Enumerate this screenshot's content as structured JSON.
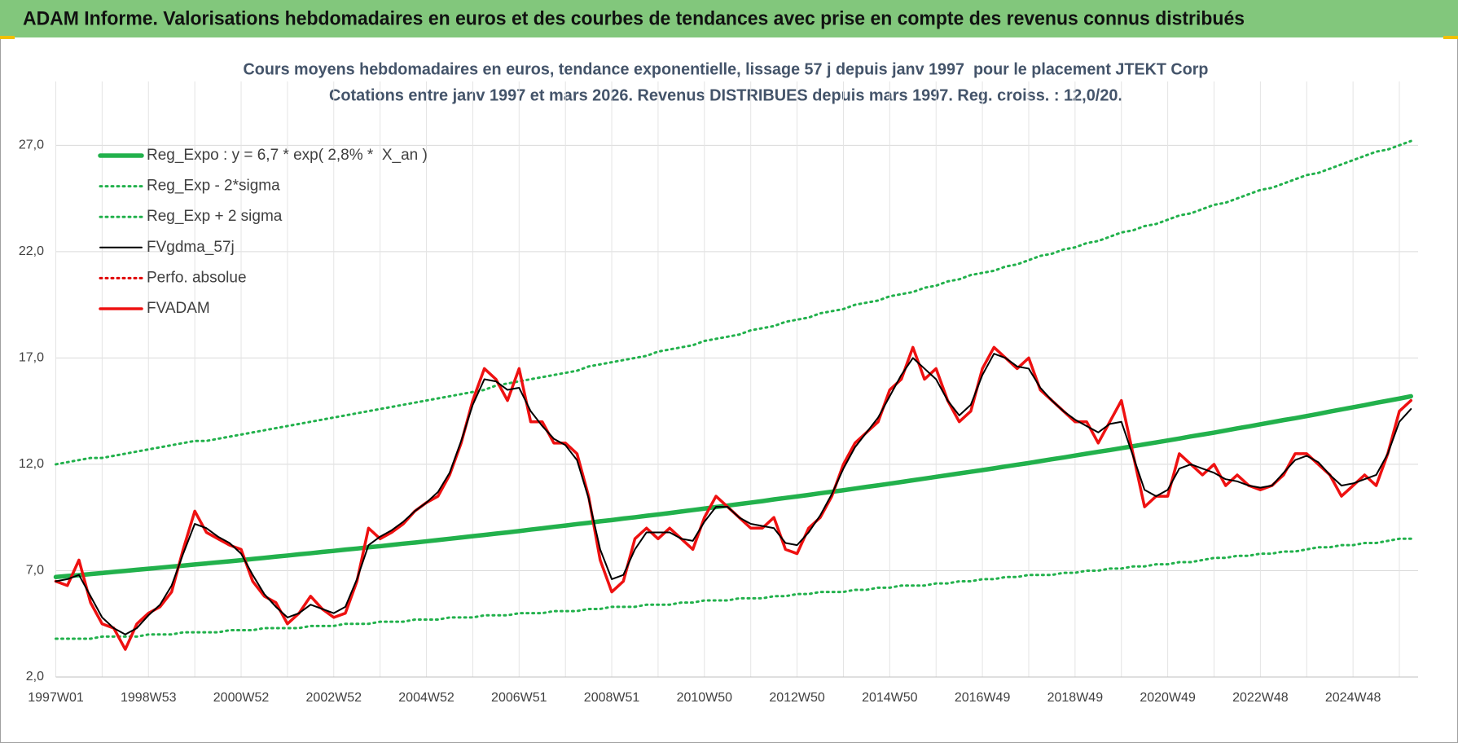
{
  "header": {
    "title": "ADAM Informe. Valorisations hebdomadaires en euros et des courbes de tendances avec prise en compte des revenus connus distribués"
  },
  "chart_data": {
    "type": "line",
    "title": "Cours moyens hebdomadaires en euros, tendance exponentielle, lissage 57 j depuis janv 1997  pour le placement JTEKT Corp",
    "subtitle": "Cotations entre janv 1997 et mars 2026. Revenus DISTRIBUES depuis mars 1997. Reg. croiss. : 12,0/20.",
    "categories": [
      "1997W01",
      null,
      null,
      null,
      null,
      null,
      null,
      null,
      "1998W53",
      null,
      null,
      null,
      null,
      null,
      null,
      null,
      "2000W52",
      null,
      null,
      null,
      null,
      null,
      null,
      null,
      "2002W52",
      null,
      null,
      null,
      null,
      null,
      null,
      null,
      "2004W52",
      null,
      null,
      null,
      null,
      null,
      null,
      null,
      "2006W51",
      null,
      null,
      null,
      null,
      null,
      null,
      null,
      "2008W51",
      null,
      null,
      null,
      null,
      null,
      null,
      null,
      "2010W50",
      null,
      null,
      null,
      null,
      null,
      null,
      null,
      "2012W50",
      null,
      null,
      null,
      null,
      null,
      null,
      null,
      "2014W50",
      null,
      null,
      null,
      null,
      null,
      null,
      null,
      "2016W49",
      null,
      null,
      null,
      null,
      null,
      null,
      null,
      "2018W49",
      null,
      null,
      null,
      null,
      null,
      null,
      null,
      "2020W49",
      null,
      null,
      null,
      null,
      null,
      null,
      null,
      "2022W48",
      null,
      null,
      null,
      null,
      null,
      null,
      null,
      "2024W48",
      null,
      null,
      null,
      null,
      null
    ],
    "ylim": [
      2,
      30
    ],
    "yticks": [
      {
        "value": 2,
        "label": "2,0"
      },
      {
        "value": 7,
        "label": "7,0"
      },
      {
        "value": 12,
        "label": "12,0"
      },
      {
        "value": 17,
        "label": "17,0"
      },
      {
        "value": 22,
        "label": "22,0"
      },
      {
        "value": 27,
        "label": "27,0"
      }
    ],
    "grid": true,
    "legend": "upper left",
    "series": [
      {
        "name": "Reg_Expo : y = 6,7 * exp( 2,8% *  X_an )",
        "color": "#22b14c",
        "style": "solid",
        "values": [
          6.7,
          6.75,
          6.79,
          6.84,
          6.89,
          6.94,
          6.99,
          7.04,
          7.09,
          7.14,
          7.19,
          7.24,
          7.29,
          7.34,
          7.39,
          7.44,
          7.49,
          7.55,
          7.6,
          7.66,
          7.71,
          7.77,
          7.82,
          7.88,
          7.93,
          7.99,
          8.04,
          8.1,
          8.15,
          8.21,
          8.27,
          8.32,
          8.38,
          8.44,
          8.5,
          8.56,
          8.62,
          8.68,
          8.74,
          8.8,
          8.86,
          8.93,
          8.99,
          9.06,
          9.12,
          9.19,
          9.25,
          9.32,
          9.38,
          9.45,
          9.51,
          9.58,
          9.64,
          9.71,
          9.78,
          9.85,
          9.92,
          9.99,
          10.06,
          10.13,
          10.2,
          10.27,
          10.35,
          10.42,
          10.49,
          10.56,
          10.64,
          10.71,
          10.78,
          10.86,
          10.94,
          11.01,
          11.09,
          11.17,
          11.25,
          11.33,
          11.41,
          11.49,
          11.57,
          11.65,
          11.73,
          11.81,
          11.9,
          11.98,
          12.06,
          12.15,
          12.24,
          12.32,
          12.41,
          12.5,
          12.59,
          12.67,
          12.76,
          12.85,
          12.94,
          13.03,
          13.12,
          13.21,
          13.31,
          13.4,
          13.49,
          13.59,
          13.69,
          13.78,
          13.88,
          13.98,
          14.08,
          14.17,
          14.27,
          14.37,
          14.48,
          14.58,
          14.68,
          14.78,
          14.89,
          14.99,
          15.09,
          15.2
        ]
      },
      {
        "name": "Reg_Exp - 2*sigma",
        "color": "#22b14c",
        "style": "dotted",
        "values": [
          3.8,
          3.8,
          3.8,
          3.8,
          3.9,
          3.9,
          3.9,
          3.9,
          4.0,
          4.0,
          4.0,
          4.1,
          4.1,
          4.1,
          4.1,
          4.2,
          4.2,
          4.2,
          4.3,
          4.3,
          4.3,
          4.3,
          4.4,
          4.4,
          4.4,
          4.5,
          4.5,
          4.5,
          4.6,
          4.6,
          4.6,
          4.7,
          4.7,
          4.7,
          4.8,
          4.8,
          4.8,
          4.9,
          4.9,
          4.9,
          5.0,
          5.0,
          5.0,
          5.1,
          5.1,
          5.1,
          5.2,
          5.2,
          5.3,
          5.3,
          5.3,
          5.4,
          5.4,
          5.4,
          5.5,
          5.5,
          5.6,
          5.6,
          5.6,
          5.7,
          5.7,
          5.7,
          5.8,
          5.8,
          5.9,
          5.9,
          6.0,
          6.0,
          6.0,
          6.1,
          6.1,
          6.2,
          6.2,
          6.3,
          6.3,
          6.3,
          6.4,
          6.4,
          6.5,
          6.5,
          6.6,
          6.6,
          6.7,
          6.7,
          6.8,
          6.8,
          6.8,
          6.9,
          6.9,
          7.0,
          7.0,
          7.1,
          7.1,
          7.2,
          7.2,
          7.3,
          7.3,
          7.4,
          7.4,
          7.5,
          7.6,
          7.6,
          7.7,
          7.7,
          7.8,
          7.8,
          7.9,
          7.9,
          8.0,
          8.1,
          8.1,
          8.2,
          8.2,
          8.3,
          8.3,
          8.4,
          8.5,
          8.5
        ]
      },
      {
        "name": "Reg_Exp + 2 sigma",
        "color": "#22b14c",
        "style": "dotted",
        "values": [
          12.0,
          12.1,
          12.2,
          12.3,
          12.3,
          12.4,
          12.5,
          12.6,
          12.7,
          12.8,
          12.9,
          13.0,
          13.1,
          13.1,
          13.2,
          13.3,
          13.4,
          13.5,
          13.6,
          13.7,
          13.8,
          13.9,
          14.0,
          14.1,
          14.2,
          14.3,
          14.4,
          14.5,
          14.6,
          14.7,
          14.8,
          14.9,
          15.0,
          15.1,
          15.2,
          15.3,
          15.4,
          15.5,
          15.7,
          15.8,
          15.9,
          16.0,
          16.1,
          16.2,
          16.3,
          16.4,
          16.6,
          16.7,
          16.8,
          16.9,
          17.0,
          17.1,
          17.3,
          17.4,
          17.5,
          17.6,
          17.8,
          17.9,
          18.0,
          18.1,
          18.3,
          18.4,
          18.5,
          18.7,
          18.8,
          18.9,
          19.1,
          19.2,
          19.3,
          19.5,
          19.6,
          19.7,
          19.9,
          20.0,
          20.1,
          20.3,
          20.4,
          20.6,
          20.7,
          20.9,
          21.0,
          21.1,
          21.3,
          21.4,
          21.6,
          21.8,
          21.9,
          22.1,
          22.2,
          22.4,
          22.5,
          22.7,
          22.9,
          23.0,
          23.2,
          23.3,
          23.5,
          23.7,
          23.8,
          24.0,
          24.2,
          24.3,
          24.5,
          24.7,
          24.9,
          25.0,
          25.2,
          25.4,
          25.6,
          25.7,
          25.9,
          26.1,
          26.3,
          26.5,
          26.7,
          26.8,
          27.0,
          27.2
        ]
      },
      {
        "name": "FVgdma_57j",
        "color": "#000000",
        "style": "solid",
        "values": [
          6.5,
          6.6,
          6.8,
          5.8,
          4.8,
          4.3,
          4.0,
          4.3,
          4.9,
          5.4,
          6.3,
          7.8,
          9.2,
          9.0,
          8.6,
          8.3,
          7.8,
          6.8,
          5.9,
          5.3,
          4.8,
          5.0,
          5.4,
          5.2,
          5.0,
          5.3,
          6.6,
          8.2,
          8.6,
          8.9,
          9.3,
          9.8,
          10.2,
          10.7,
          11.6,
          13.1,
          14.8,
          16.0,
          15.9,
          15.5,
          15.6,
          14.5,
          13.8,
          13.2,
          12.9,
          12.2,
          10.4,
          8.0,
          6.6,
          6.8,
          8.0,
          8.8,
          8.8,
          8.8,
          8.5,
          8.4,
          9.3,
          10.0,
          10.0,
          9.5,
          9.2,
          9.1,
          9.0,
          8.3,
          8.2,
          8.8,
          9.6,
          10.6,
          11.8,
          12.8,
          13.5,
          14.2,
          15.2,
          16.2,
          17.0,
          16.5,
          16.0,
          15.0,
          14.3,
          14.8,
          16.2,
          17.2,
          17.0,
          16.6,
          16.5,
          15.6,
          15.0,
          14.5,
          14.1,
          13.8,
          13.5,
          13.9,
          14.0,
          12.4,
          10.8,
          10.5,
          10.8,
          11.8,
          12.0,
          11.8,
          11.6,
          11.3,
          11.2,
          11.0,
          10.9,
          11.0,
          11.6,
          12.2,
          12.4,
          12.1,
          11.5,
          11.0,
          11.1,
          11.3,
          11.5,
          12.5,
          14.0,
          14.6
        ]
      },
      {
        "name": "Perfo. absolue",
        "color": "#e00000",
        "style": "dotted",
        "values": [
          6.5,
          6.3,
          7.5,
          5.5,
          4.5,
          4.3,
          3.3,
          4.5,
          5.0,
          5.3,
          6.0,
          8.0,
          9.8,
          8.8,
          8.5,
          8.2,
          8.0,
          6.5,
          5.8,
          5.5,
          4.5,
          5.0,
          5.8,
          5.2,
          4.8,
          5.0,
          6.5,
          9.0,
          8.5,
          8.8,
          9.2,
          9.8,
          10.2,
          10.5,
          11.5,
          13.0,
          15.0,
          16.5,
          16.0,
          15.0,
          16.5,
          14.0,
          14.0,
          13.0,
          13.0,
          12.5,
          10.5,
          7.5,
          6.0,
          6.5,
          8.5,
          9.0,
          8.5,
          9.0,
          8.5,
          8.0,
          9.5,
          10.5,
          10.0,
          9.5,
          9.0,
          9.0,
          9.5,
          8.0,
          7.8,
          9.0,
          9.5,
          10.5,
          12.0,
          13.0,
          13.5,
          14.0,
          15.5,
          16.0,
          17.5,
          16.0,
          16.5,
          15.0,
          14.0,
          14.5,
          16.5,
          17.5,
          17.0,
          16.5,
          17.0,
          15.5,
          15.0,
          14.5,
          14.0,
          14.0,
          13.0,
          14.0,
          15.0,
          12.5,
          10.0,
          10.5,
          10.5,
          12.5,
          12.0,
          11.5,
          12.0,
          11.0,
          11.5,
          11.0,
          10.8,
          11.0,
          11.5,
          12.5,
          12.5,
          12.0,
          11.5,
          10.5,
          11.0,
          11.5,
          11.0,
          12.5,
          14.5,
          15.0
        ]
      },
      {
        "name": "FVADAM",
        "color": "#ee1111",
        "style": "solid",
        "values": [
          6.5,
          6.3,
          7.5,
          5.5,
          4.5,
          4.3,
          3.3,
          4.5,
          5.0,
          5.3,
          6.0,
          8.0,
          9.8,
          8.8,
          8.5,
          8.2,
          8.0,
          6.5,
          5.8,
          5.5,
          4.5,
          5.0,
          5.8,
          5.2,
          4.8,
          5.0,
          6.5,
          9.0,
          8.5,
          8.8,
          9.2,
          9.8,
          10.2,
          10.5,
          11.5,
          13.0,
          15.0,
          16.5,
          16.0,
          15.0,
          16.5,
          14.0,
          14.0,
          13.0,
          13.0,
          12.5,
          10.5,
          7.5,
          6.0,
          6.5,
          8.5,
          9.0,
          8.5,
          9.0,
          8.5,
          8.0,
          9.5,
          10.5,
          10.0,
          9.5,
          9.0,
          9.0,
          9.5,
          8.0,
          7.8,
          9.0,
          9.5,
          10.5,
          12.0,
          13.0,
          13.5,
          14.0,
          15.5,
          16.0,
          17.5,
          16.0,
          16.5,
          15.0,
          14.0,
          14.5,
          16.5,
          17.5,
          17.0,
          16.5,
          17.0,
          15.5,
          15.0,
          14.5,
          14.0,
          14.0,
          13.0,
          14.0,
          15.0,
          12.5,
          10.0,
          10.5,
          10.5,
          12.5,
          12.0,
          11.5,
          12.0,
          11.0,
          11.5,
          11.0,
          10.8,
          11.0,
          11.5,
          12.5,
          12.5,
          12.0,
          11.5,
          10.5,
          11.0,
          11.5,
          11.0,
          12.5,
          14.5,
          15.0
        ]
      }
    ]
  }
}
